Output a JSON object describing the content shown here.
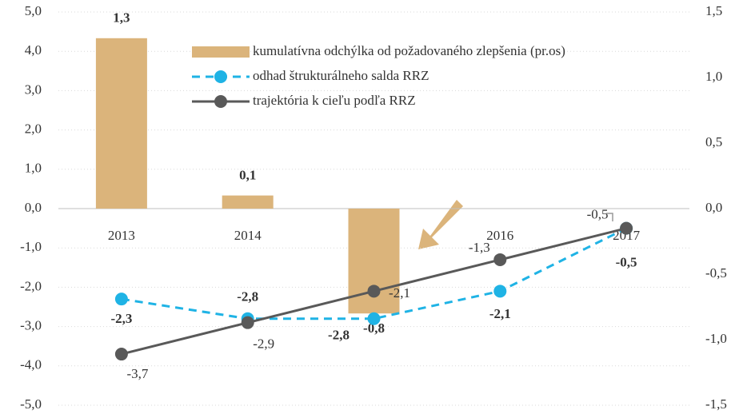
{
  "chart_data": {
    "type": "bar",
    "categories": [
      "2013",
      "2014",
      "2015",
      "2016",
      "2017"
    ],
    "series": [
      {
        "name": "kumulatívna odchýlka od požadovaného zlepšenia (pr.os)",
        "type": "bar",
        "axis": "y2",
        "color": "#dbb47b",
        "values": [
          1.3,
          0.1,
          -0.8,
          null,
          null
        ],
        "value_labels": [
          "1,3",
          "0,1",
          "-0,8",
          null,
          null
        ]
      },
      {
        "name": "odhad štrukturálneho salda RRZ",
        "type": "line",
        "dashed": true,
        "color": "#1fb3e5",
        "values": [
          -2.3,
          -2.8,
          -2.8,
          -2.1,
          -0.5
        ],
        "value_labels": [
          "-2,3",
          "-2,8",
          "-2,8",
          "-2,1",
          "-0,5"
        ]
      },
      {
        "name": "trajektória k cieľu podľa RRZ",
        "type": "line",
        "dashed": false,
        "color": "#595959",
        "values": [
          -3.7,
          -2.9,
          -2.1,
          -1.3,
          -0.5
        ],
        "value_labels": [
          "-3,7",
          "-2,9",
          "-2,1",
          "-1,3",
          "-0,5"
        ]
      }
    ],
    "ylim": [
      -5,
      5
    ],
    "yticks": [
      {
        "value": -5,
        "label": "-5,0"
      },
      {
        "value": -4,
        "label": "-4,0"
      },
      {
        "value": -3,
        "label": "-3,0"
      },
      {
        "value": -2,
        "label": "-2,0"
      },
      {
        "value": -1,
        "label": "-1,0"
      },
      {
        "value": 0,
        "label": "0,0"
      },
      {
        "value": 1,
        "label": "1,0"
      },
      {
        "value": 2,
        "label": "2,0"
      },
      {
        "value": 3,
        "label": "3,0"
      },
      {
        "value": 4,
        "label": "4,0"
      },
      {
        "value": 5,
        "label": "5,0"
      }
    ],
    "y2lim": [
      -1.5,
      1.5
    ],
    "y2ticks": [
      {
        "value": -1.5,
        "label": "-1,5"
      },
      {
        "value": -1,
        "label": "-1,0"
      },
      {
        "value": -0.5,
        "label": "-0,5"
      },
      {
        "value": 0,
        "label": "0,0"
      },
      {
        "value": 0.5,
        "label": "0,5"
      },
      {
        "value": 1,
        "label": "1,0"
      },
      {
        "value": 1.5,
        "label": "1,5"
      }
    ],
    "grid": true
  }
}
